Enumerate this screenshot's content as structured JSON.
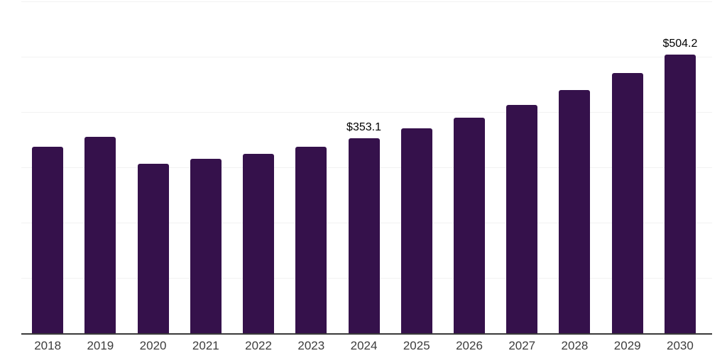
{
  "chart_data": {
    "type": "bar",
    "title": "",
    "xlabel": "",
    "ylabel": "",
    "legend": "none",
    "grid": "horizontal",
    "categories": [
      "2018",
      "2019",
      "2020",
      "2021",
      "2022",
      "2023",
      "2024",
      "2025",
      "2026",
      "2027",
      "2028",
      "2029",
      "2030"
    ],
    "values": [
      337,
      355,
      306,
      316,
      325,
      337,
      353.1,
      370,
      390,
      413,
      440,
      470,
      504.2
    ],
    "data_labels": [
      {
        "category": "2024",
        "text": "$353.1"
      },
      {
        "category": "2030",
        "text": "$504.2"
      }
    ],
    "ylim": [
      0,
      600
    ],
    "gridline_step": 100,
    "y_tick_labels_visible": false,
    "colors": {
      "bar": "#35114B",
      "gridline": "#f2f2f2",
      "axis_line": "#3a3a3a",
      "x_tick_label": "#3d3d3d",
      "data_label": "#000000",
      "background": "#ffffff"
    }
  }
}
